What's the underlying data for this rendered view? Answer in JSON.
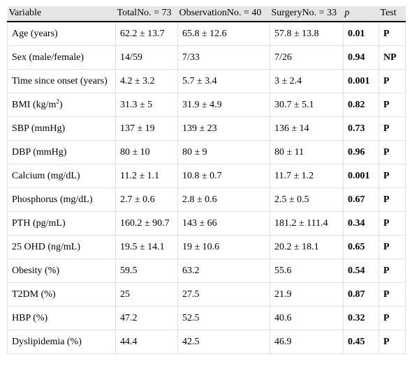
{
  "headers": {
    "variable": "Variable",
    "total": "TotalNo. = 73",
    "observation": "ObservationNo. = 40",
    "surgery": "SurgeryNo. = 33",
    "p": "p",
    "test": "Test"
  },
  "rows": [
    {
      "variable": "Age (years)",
      "total": "62.2 ± 13.7",
      "observation": "65.8 ± 12.6",
      "surgery": "57.8 ± 13.8",
      "p": "0.01",
      "test": "P"
    },
    {
      "variable": "Sex (male/female)",
      "total": "14/59",
      "observation": "7/33",
      "surgery": "7/26",
      "p": "0.94",
      "test": "NP"
    },
    {
      "variable": "Time since onset (years)",
      "total": "4.2 ± 3.2",
      "observation": "5.7 ± 3.4",
      "surgery": "3 ± 2.4",
      "p": "0.001",
      "test": "P"
    },
    {
      "variable": "BMI (kg/m",
      "variable_sup": "2",
      "variable_tail": ")",
      "total": "31.3 ± 5",
      "observation": "31.9 ± 4.9",
      "surgery": "30.7 ± 5.1",
      "p": "0.82",
      "test": "P"
    },
    {
      "variable": "SBP (mmHg)",
      "total": "137 ± 19",
      "observation": "139 ± 23",
      "surgery": "136 ± 14",
      "p": "0.73",
      "test": "P"
    },
    {
      "variable": "DBP (mmHg)",
      "total": "80 ± 10",
      "observation": "80 ± 9",
      "surgery": "80 ± 11",
      "p": "0.96",
      "test": "P"
    },
    {
      "variable": "Calcium (mg/dL)",
      "total": "11.2 ± 1.1",
      "observation": "10.8 ± 0.7",
      "surgery": "11.7 ± 1.2",
      "p": "0.001",
      "test": "P"
    },
    {
      "variable": "Phosphorus (mg/dL)",
      "total": "2.7 ± 0.6",
      "observation": "2.8 ± 0.6",
      "surgery": "2.5 ± 0.5",
      "p": "0.67",
      "test": "P"
    },
    {
      "variable": "PTH (pg/mL)",
      "total": "160.2 ± 90.7",
      "observation": "143 ± 66",
      "surgery": "181.2 ± 111.4",
      "p": "0.34",
      "test": "P"
    },
    {
      "variable": "25 OHD (ng/mL)",
      "total": "19.5 ± 14.1",
      "observation": "19 ± 10.6",
      "surgery": "20.2 ± 18.1",
      "p": "0.65",
      "test": "P"
    },
    {
      "variable": "Obesity (%)",
      "total": "59.5",
      "observation": "63.2",
      "surgery": "55.6",
      "p": "0.54",
      "test": "P"
    },
    {
      "variable": "T2DM (%)",
      "total": "25",
      "observation": "27.5",
      "surgery": "21.9",
      "p": "0.87",
      "test": "P"
    },
    {
      "variable": "HBP (%)",
      "total": "47.2",
      "observation": "52.5",
      "surgery": "40.6",
      "p": "0.32",
      "test": "P"
    },
    {
      "variable": "Dyslipidemia (%)",
      "total": "44.4",
      "observation": "42.5",
      "surgery": "46.9",
      "p": "0.45",
      "test": "P"
    }
  ]
}
